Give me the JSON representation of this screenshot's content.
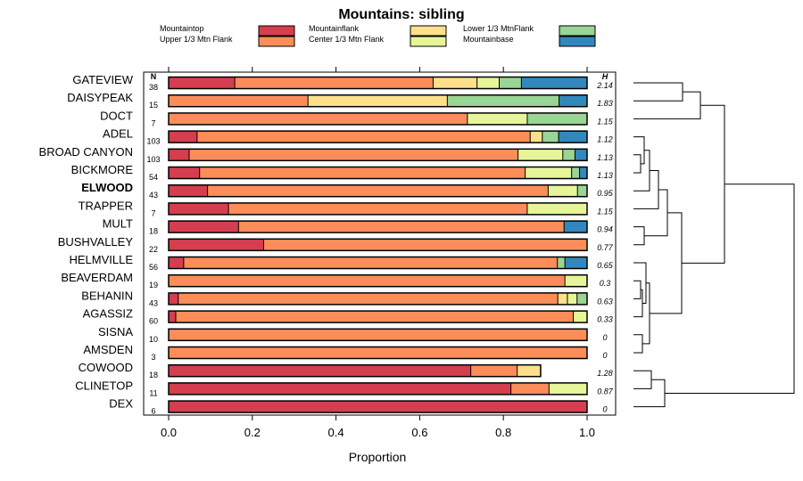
{
  "chart_data": {
    "type": "stacked-bar",
    "title": "Mountains: sibling",
    "xlabel": "Proportion",
    "ylabel": "",
    "xlim": [
      0,
      1
    ],
    "xticks": [
      "0.0",
      "0.2",
      "0.4",
      "0.6",
      "0.8",
      "1.0"
    ],
    "n_header": "N",
    "h_header": "H",
    "highlight": "ELWOOD",
    "legend": [
      {
        "name": "Mountaintop",
        "color": "#d53e4f"
      },
      {
        "name": "Upper 1/3 Mtn Flank",
        "color": "#fc8d59"
      },
      {
        "name": "Mountainflank",
        "color": "#fee08b"
      },
      {
        "name": "Center 1/3 Mtn Flank",
        "color": "#e6f598"
      },
      {
        "name": "Lower 1/3 MtnFlank",
        "color": "#99d594"
      },
      {
        "name": "Mountainbase",
        "color": "#3288bd"
      }
    ],
    "series_order": [
      "Mountaintop",
      "Upper 1/3 Mtn Flank",
      "Mountainflank",
      "Center 1/3 Mtn Flank",
      "Lower 1/3 MtnFlank",
      "Mountainbase"
    ],
    "rows": [
      {
        "label": "GATEVIEW",
        "n": "38",
        "h": "2.14",
        "values": [
          0.158,
          0.474,
          0.105,
          0.053,
          0.053,
          0.157
        ]
      },
      {
        "label": "DAISYPEAK",
        "n": "15",
        "h": "1.83",
        "values": [
          0,
          0.333,
          0.333,
          0,
          0.267,
          0.067
        ]
      },
      {
        "label": "DOCT",
        "n": "7",
        "h": "1.15",
        "values": [
          0,
          0.714,
          0,
          0.143,
          0.143,
          0
        ]
      },
      {
        "label": "ADEL",
        "n": "103",
        "h": "1.12",
        "values": [
          0.068,
          0.796,
          0.029,
          0,
          0.039,
          0.068
        ]
      },
      {
        "label": "BROAD CANYON",
        "n": "103",
        "h": "1.13",
        "values": [
          0.049,
          0.786,
          0,
          0.107,
          0.029,
          0.029
        ]
      },
      {
        "label": "BICKMORE",
        "n": "54",
        "h": "1.13",
        "values": [
          0.074,
          0.778,
          0,
          0.111,
          0.019,
          0.018
        ]
      },
      {
        "label": "ELWOOD",
        "n": "43",
        "h": "0.95",
        "values": [
          0.093,
          0.814,
          0,
          0.07,
          0.023,
          0
        ]
      },
      {
        "label": "TRAPPER",
        "n": "7",
        "h": "1.15",
        "values": [
          0.143,
          0.714,
          0,
          0.143,
          0,
          0
        ]
      },
      {
        "label": "MULT",
        "n": "18",
        "h": "0.94",
        "values": [
          0.167,
          0.778,
          0,
          0,
          0,
          0.055
        ]
      },
      {
        "label": "BUSHVALLEY",
        "n": "22",
        "h": "0.77",
        "values": [
          0.227,
          0.773,
          0,
          0,
          0,
          0
        ]
      },
      {
        "label": "HELMVILLE",
        "n": "56",
        "h": "0.65",
        "values": [
          0.036,
          0.893,
          0,
          0,
          0.018,
          0.053
        ]
      },
      {
        "label": "BEAVERDAM",
        "n": "19",
        "h": "0.3",
        "values": [
          0,
          0.947,
          0,
          0.053,
          0,
          0
        ]
      },
      {
        "label": "BEHANIN",
        "n": "43",
        "h": "0.63",
        "values": [
          0.023,
          0.907,
          0.023,
          0.023,
          0.024,
          0
        ]
      },
      {
        "label": "AGASSIZ",
        "n": "60",
        "h": "0.33",
        "values": [
          0.017,
          0.95,
          0,
          0.033,
          0,
          0
        ]
      },
      {
        "label": "SISNA",
        "n": "10",
        "h": "0",
        "values": [
          0,
          1.0,
          0,
          0,
          0,
          0
        ]
      },
      {
        "label": "AMSDEN",
        "n": "3",
        "h": "0",
        "values": [
          0,
          1.0,
          0,
          0,
          0,
          0
        ]
      },
      {
        "label": "COWOOD",
        "n": "18",
        "h": "1.28",
        "values": [
          0.722,
          0.111,
          0.056,
          0,
          0,
          0
        ]
      },
      {
        "label": "CLINETOP",
        "n": "11",
        "h": "0.87",
        "values": [
          0.818,
          0.091,
          0,
          0.091,
          0,
          0
        ]
      },
      {
        "label": "DEX",
        "n": "6",
        "h": "0",
        "values": [
          1.0,
          0,
          0,
          0,
          0,
          0
        ]
      }
    ]
  }
}
